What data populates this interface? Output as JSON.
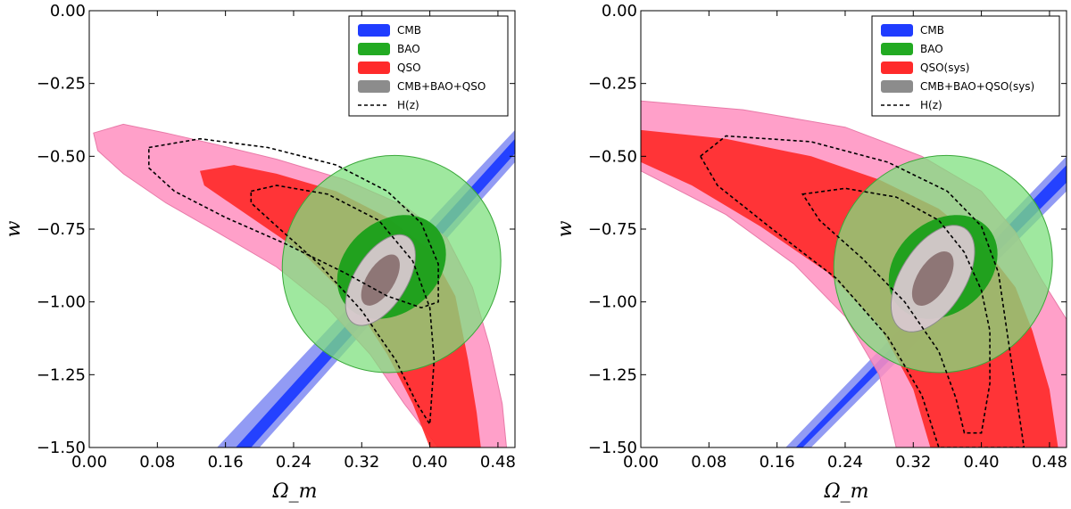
{
  "chart_data": [
    {
      "type": "contour",
      "xlabel": "Ω_m",
      "ylabel": "w",
      "xlim": [
        0.0,
        0.5
      ],
      "ylim": [
        -1.5,
        0.0
      ],
      "x_ticks": [
        "0.00",
        "0.08",
        "0.16",
        "0.24",
        "0.32",
        "0.40",
        "0.48"
      ],
      "y_ticks": [
        "0.00",
        "−0.25",
        "−0.50",
        "−0.75",
        "−1.00",
        "−1.25",
        "−1.50"
      ],
      "legend_position": "top-right",
      "legend": [
        {
          "label": "CMB",
          "color": "#1f3cff",
          "style": "patch"
        },
        {
          "label": "BAO",
          "color": "#22aa22",
          "style": "patch"
        },
        {
          "label": "QSO",
          "color": "#ff2a2a",
          "style": "patch"
        },
        {
          "label": "CMB+BAO+QSO",
          "color": "#8c8c8c",
          "style": "patch"
        },
        {
          "label": "H(z)",
          "color": "#000000",
          "style": "dashed"
        }
      ],
      "regions": {
        "cmb_outer": [
          [
            0.15,
            -1.5
          ],
          [
            0.5,
            -0.41
          ],
          [
            0.5,
            -0.52
          ],
          [
            0.2,
            -1.5
          ]
        ],
        "cmb_inner": [
          [
            0.172,
            -1.5
          ],
          [
            0.5,
            -0.44
          ],
          [
            0.5,
            -0.49
          ],
          [
            0.19,
            -1.5
          ]
        ],
        "bao_outer": {
          "center": [
            0.355,
            -0.87
          ],
          "rx": 0.13,
          "ry": 0.07,
          "angle_deg": 40
        },
        "bao_inner": {
          "center": [
            0.355,
            -0.88
          ],
          "rx": 0.07,
          "ry": 0.03,
          "angle_deg": 40
        },
        "qso_outer": [
          [
            0.005,
            -0.42
          ],
          [
            0.04,
            -0.39
          ],
          [
            0.09,
            -0.42
          ],
          [
            0.15,
            -0.46
          ],
          [
            0.22,
            -0.51
          ],
          [
            0.3,
            -0.58
          ],
          [
            0.37,
            -0.67
          ],
          [
            0.42,
            -0.78
          ],
          [
            0.45,
            -0.95
          ],
          [
            0.47,
            -1.15
          ],
          [
            0.485,
            -1.35
          ],
          [
            0.49,
            -1.5
          ],
          [
            0.41,
            -1.5
          ],
          [
            0.37,
            -1.35
          ],
          [
            0.33,
            -1.18
          ],
          [
            0.28,
            -1.02
          ],
          [
            0.22,
            -0.88
          ],
          [
            0.15,
            -0.76
          ],
          [
            0.09,
            -0.66
          ],
          [
            0.04,
            -0.56
          ],
          [
            0.01,
            -0.48
          ]
        ],
        "qso_inner": [
          [
            0.13,
            -0.55
          ],
          [
            0.17,
            -0.53
          ],
          [
            0.22,
            -0.56
          ],
          [
            0.29,
            -0.62
          ],
          [
            0.35,
            -0.71
          ],
          [
            0.4,
            -0.82
          ],
          [
            0.43,
            -0.98
          ],
          [
            0.445,
            -1.2
          ],
          [
            0.455,
            -1.38
          ],
          [
            0.46,
            -1.5
          ],
          [
            0.4,
            -1.5
          ],
          [
            0.38,
            -1.35
          ],
          [
            0.35,
            -1.18
          ],
          [
            0.31,
            -1.0
          ],
          [
            0.25,
            -0.83
          ],
          [
            0.18,
            -0.69
          ],
          [
            0.135,
            -0.6
          ]
        ],
        "joint_outer": {
          "center": [
            0.342,
            -0.925
          ],
          "rx": 0.06,
          "ry": 0.017,
          "angle_deg": 58
        },
        "joint_inner": {
          "center": [
            0.342,
            -0.925
          ],
          "rx": 0.034,
          "ry": 0.009,
          "angle_deg": 58
        },
        "hz_outer": [
          [
            0.07,
            -0.47
          ],
          [
            0.13,
            -0.44
          ],
          [
            0.21,
            -0.47
          ],
          [
            0.29,
            -0.53
          ],
          [
            0.35,
            -0.62
          ],
          [
            0.39,
            -0.73
          ],
          [
            0.41,
            -0.87
          ],
          [
            0.41,
            -1.0
          ],
          [
            0.39,
            -1.02
          ],
          [
            0.35,
            -0.98
          ],
          [
            0.3,
            -0.9
          ],
          [
            0.23,
            -0.8
          ],
          [
            0.16,
            -0.71
          ],
          [
            0.1,
            -0.62
          ],
          [
            0.07,
            -0.54
          ]
        ],
        "hz_inner": [
          [
            0.19,
            -0.62
          ],
          [
            0.22,
            -0.6
          ],
          [
            0.28,
            -0.63
          ],
          [
            0.34,
            -0.72
          ],
          [
            0.38,
            -0.86
          ],
          [
            0.4,
            -1.02
          ],
          [
            0.405,
            -1.2
          ],
          [
            0.4,
            -1.42
          ],
          [
            0.385,
            -1.35
          ],
          [
            0.36,
            -1.2
          ],
          [
            0.32,
            -1.03
          ],
          [
            0.27,
            -0.87
          ],
          [
            0.22,
            -0.74
          ],
          [
            0.19,
            -0.66
          ]
        ]
      }
    },
    {
      "type": "contour",
      "xlabel": "Ω_m",
      "ylabel": "w",
      "xlim": [
        0.0,
        0.5
      ],
      "ylim": [
        -1.5,
        0.0
      ],
      "x_ticks": [
        "0.00",
        "0.08",
        "0.16",
        "0.24",
        "0.32",
        "0.40",
        "0.48"
      ],
      "y_ticks": [
        "0.00",
        "−0.25",
        "−0.50",
        "−0.75",
        "−1.00",
        "−1.25",
        "−1.50"
      ],
      "legend_position": "top-right",
      "legend": [
        {
          "label": "CMB",
          "color": "#1f3cff",
          "style": "patch"
        },
        {
          "label": "BAO",
          "color": "#22aa22",
          "style": "patch"
        },
        {
          "label": "QSO(sys)",
          "color": "#ff2a2a",
          "style": "patch"
        },
        {
          "label": "CMB+BAO+QSO(sys)",
          "color": "#8c8c8c",
          "style": "patch"
        },
        {
          "label": "H(z)",
          "color": "#000000",
          "style": "dashed"
        }
      ],
      "regions": {
        "cmb_outer": [
          [
            0.17,
            -1.5
          ],
          [
            0.5,
            -0.5
          ],
          [
            0.5,
            -0.62
          ],
          [
            0.2,
            -1.5
          ]
        ],
        "cmb_inner": [
          [
            0.182,
            -1.5
          ],
          [
            0.5,
            -0.53
          ],
          [
            0.5,
            -0.59
          ],
          [
            0.19,
            -1.5
          ]
        ],
        "bao_outer": {
          "center": [
            0.355,
            -0.87
          ],
          "rx": 0.13,
          "ry": 0.07,
          "angle_deg": 40
        },
        "bao_inner": {
          "center": [
            0.355,
            -0.88
          ],
          "rx": 0.07,
          "ry": 0.03,
          "angle_deg": 40
        },
        "qso_outer": [
          [
            0.0,
            -0.31
          ],
          [
            0.12,
            -0.34
          ],
          [
            0.24,
            -0.4
          ],
          [
            0.33,
            -0.5
          ],
          [
            0.4,
            -0.62
          ],
          [
            0.44,
            -0.76
          ],
          [
            0.47,
            -0.92
          ],
          [
            0.5,
            -1.06
          ],
          [
            0.5,
            -1.5
          ],
          [
            0.3,
            -1.5
          ],
          [
            0.28,
            -1.25
          ],
          [
            0.24,
            -1.05
          ],
          [
            0.18,
            -0.87
          ],
          [
            0.1,
            -0.7
          ],
          [
            0.0,
            -0.55
          ]
        ],
        "qso_inner": [
          [
            0.0,
            -0.41
          ],
          [
            0.1,
            -0.44
          ],
          [
            0.2,
            -0.5
          ],
          [
            0.28,
            -0.58
          ],
          [
            0.35,
            -0.68
          ],
          [
            0.4,
            -0.8
          ],
          [
            0.44,
            -0.95
          ],
          [
            0.46,
            -1.1
          ],
          [
            0.48,
            -1.3
          ],
          [
            0.49,
            -1.5
          ],
          [
            0.34,
            -1.5
          ],
          [
            0.32,
            -1.3
          ],
          [
            0.28,
            -1.08
          ],
          [
            0.22,
            -0.9
          ],
          [
            0.14,
            -0.74
          ],
          [
            0.06,
            -0.6
          ],
          [
            0.0,
            -0.52
          ]
        ],
        "joint_outer": {
          "center": [
            0.343,
            -0.92
          ],
          "rx": 0.07,
          "ry": 0.021,
          "angle_deg": 58
        },
        "joint_inner": {
          "center": [
            0.343,
            -0.92
          ],
          "rx": 0.036,
          "ry": 0.01,
          "angle_deg": 58
        },
        "hz_outer": [
          [
            0.07,
            -0.5
          ],
          [
            0.1,
            -0.43
          ],
          [
            0.2,
            -0.45
          ],
          [
            0.29,
            -0.52
          ],
          [
            0.36,
            -0.62
          ],
          [
            0.4,
            -0.74
          ],
          [
            0.42,
            -0.9
          ],
          [
            0.43,
            -1.1
          ],
          [
            0.44,
            -1.3
          ],
          [
            0.45,
            -1.5
          ],
          [
            0.35,
            -1.5
          ],
          [
            0.33,
            -1.32
          ],
          [
            0.29,
            -1.12
          ],
          [
            0.23,
            -0.92
          ],
          [
            0.15,
            -0.74
          ],
          [
            0.09,
            -0.6
          ]
        ],
        "hz_inner": [
          [
            0.19,
            -0.63
          ],
          [
            0.24,
            -0.61
          ],
          [
            0.3,
            -0.64
          ],
          [
            0.35,
            -0.72
          ],
          [
            0.38,
            -0.83
          ],
          [
            0.4,
            -0.96
          ],
          [
            0.41,
            -1.1
          ],
          [
            0.41,
            -1.28
          ],
          [
            0.4,
            -1.45
          ],
          [
            0.38,
            -1.45
          ],
          [
            0.37,
            -1.33
          ],
          [
            0.35,
            -1.17
          ],
          [
            0.31,
            -1.0
          ],
          [
            0.26,
            -0.85
          ],
          [
            0.21,
            -0.72
          ]
        ]
      }
    }
  ]
}
